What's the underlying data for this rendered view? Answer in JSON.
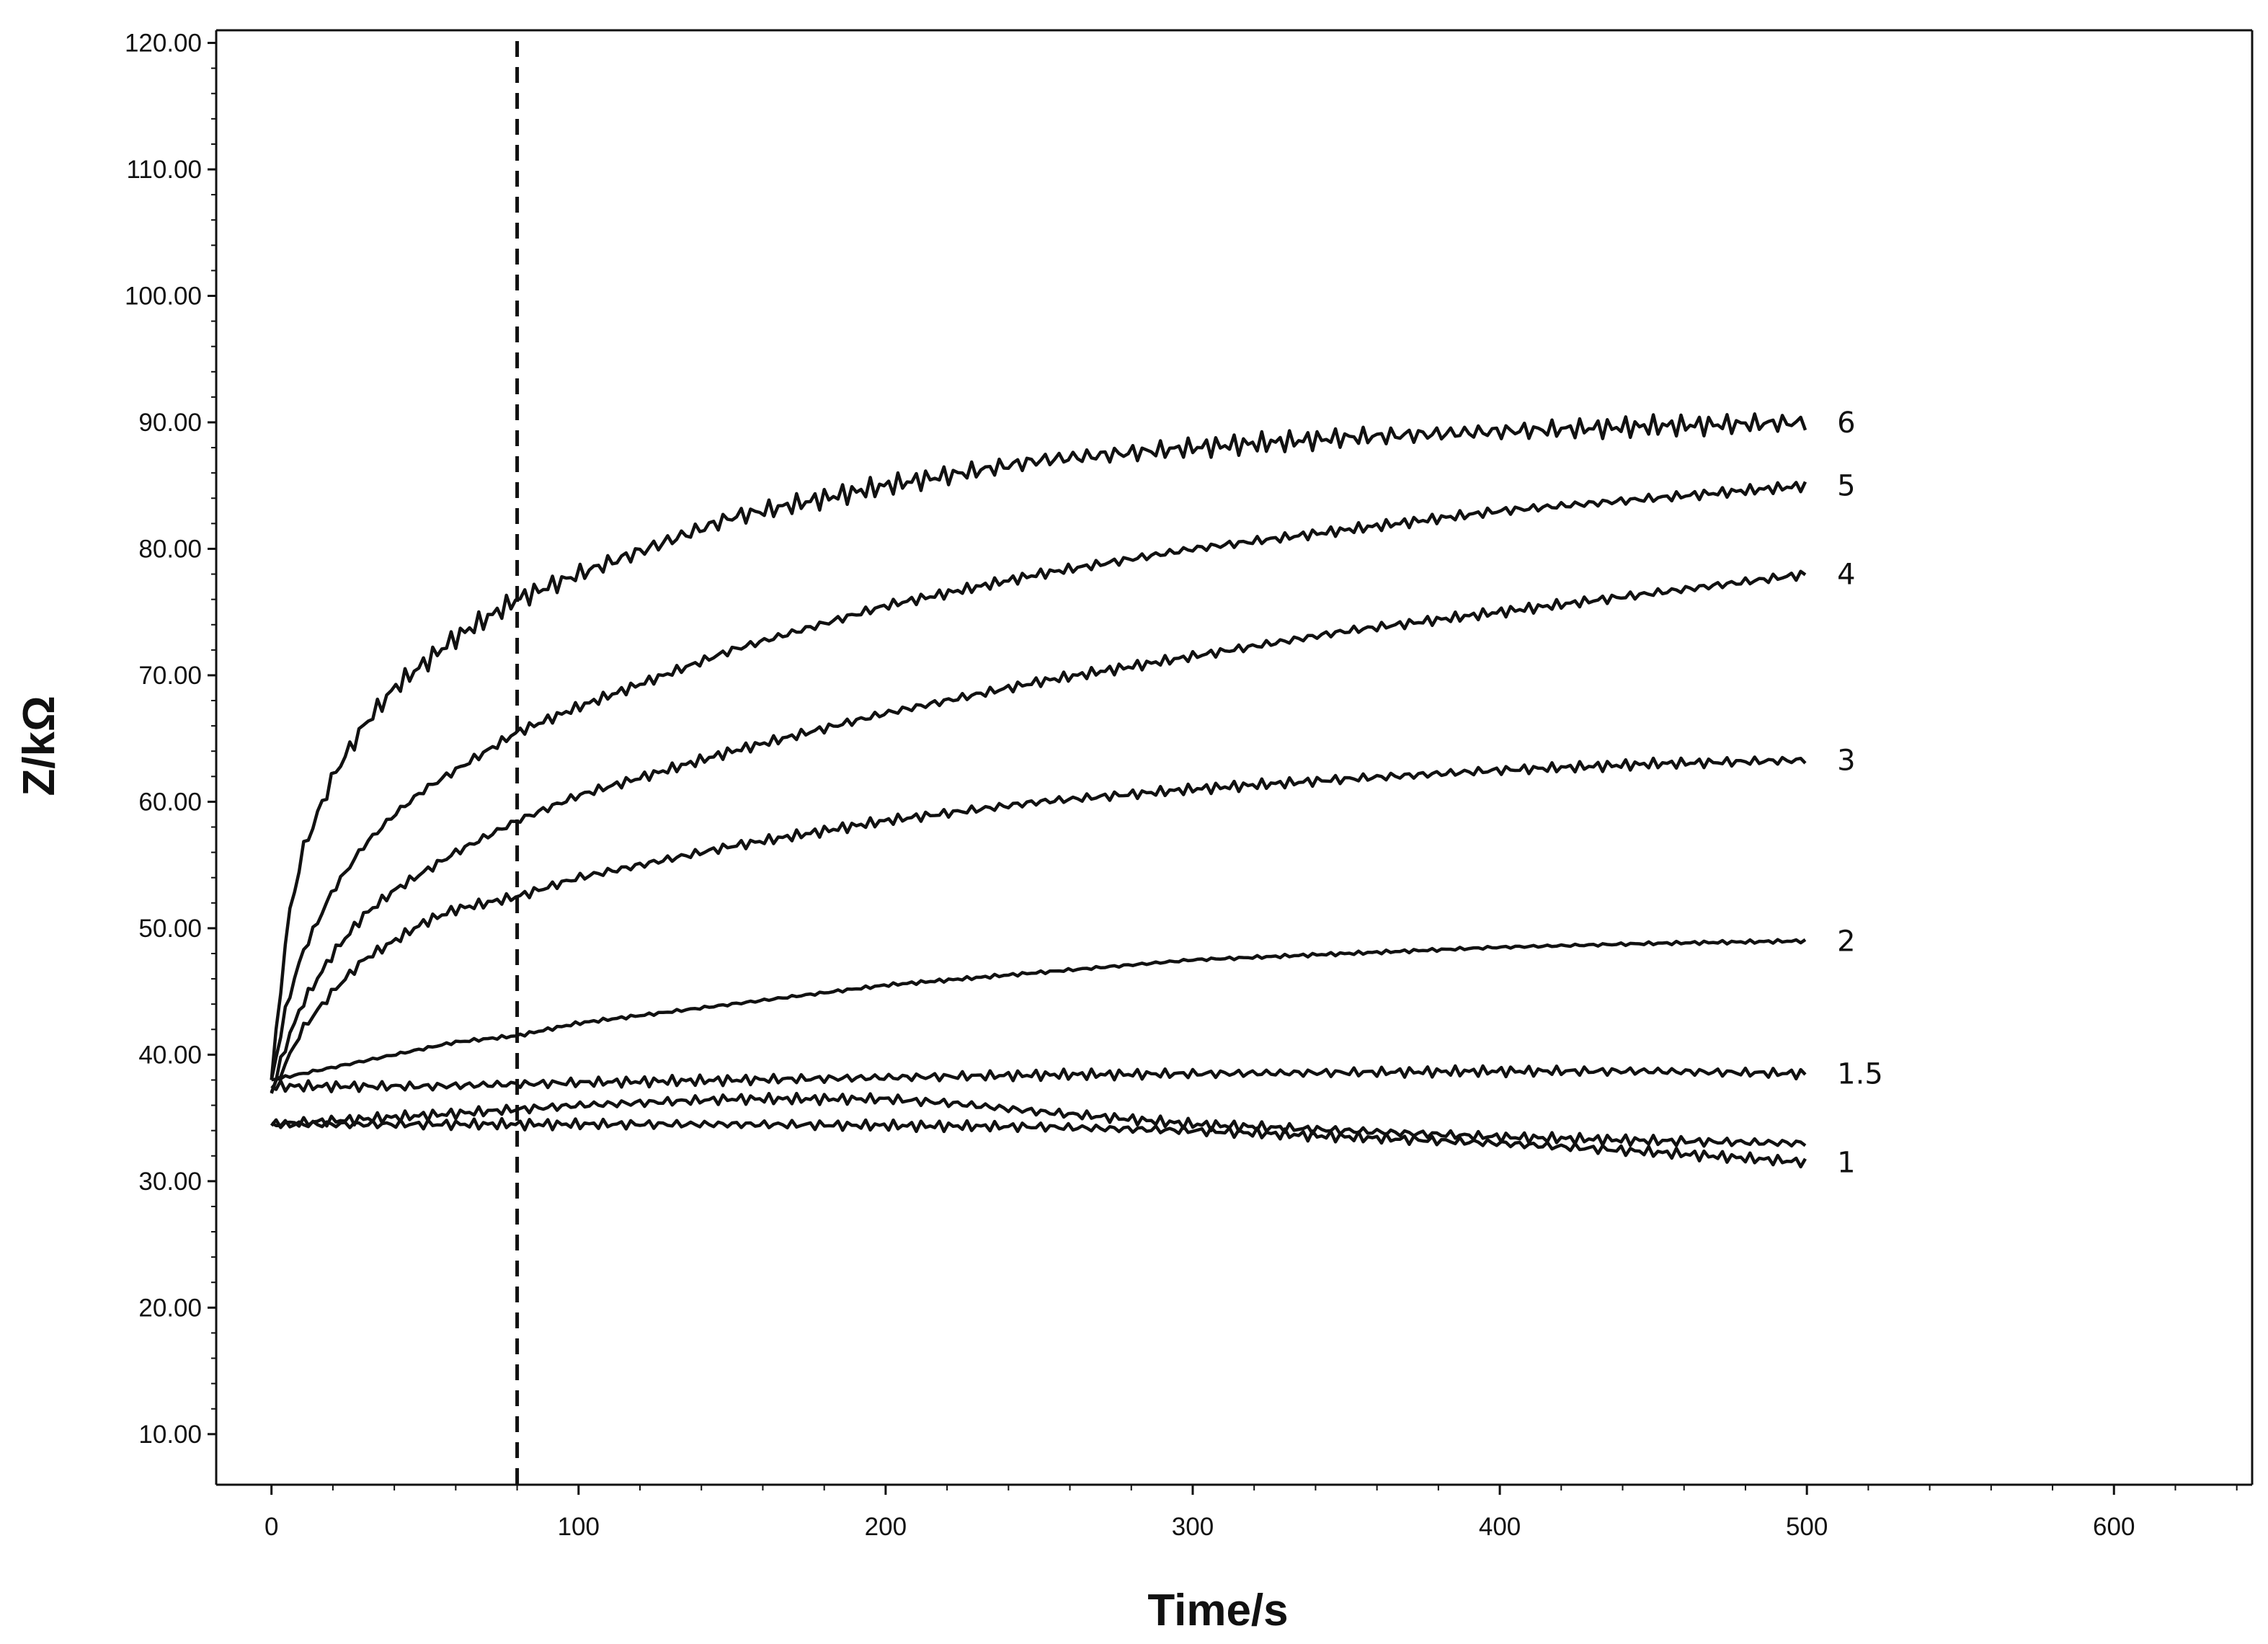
{
  "chart_data": {
    "type": "line",
    "title": "",
    "xlabel": "Time/s",
    "ylabel": "Z/kΩ",
    "xlim": [
      -18,
      645
    ],
    "ylim": [
      6,
      121
    ],
    "grid": false,
    "legend": "none",
    "line_color": "#111111",
    "x_ticks": [
      0,
      100,
      200,
      300,
      400,
      500,
      600
    ],
    "y_ticks": [
      10,
      20,
      30,
      40,
      50,
      60,
      70,
      80,
      90,
      100,
      110,
      120
    ],
    "y_tick_labels": [
      "10.00",
      "20.00",
      "30.00",
      "40.00",
      "50.00",
      "60.00",
      "70.00",
      "80.00",
      "90.00",
      "100.00",
      "110.00",
      "120.00"
    ],
    "vertical_marker_x": 80,
    "series": [
      {
        "label": "6",
        "x": [
          0,
          5,
          10,
          20,
          30,
          40,
          50,
          60,
          80,
          100,
          150,
          200,
          250,
          300,
          350,
          400,
          450,
          500
        ],
        "y": [
          38,
          50,
          56,
          62,
          66,
          69,
          71,
          73,
          76,
          78,
          82.5,
          85,
          87,
          88,
          88.8,
          89.3,
          89.7,
          90
        ]
      },
      {
        "label": "5",
        "x": [
          0,
          5,
          10,
          20,
          30,
          40,
          50,
          60,
          80,
          100,
          150,
          200,
          250,
          300,
          350,
          400,
          450,
          500
        ],
        "y": [
          38,
          44,
          48,
          53,
          56.5,
          59,
          61,
          62.5,
          65.5,
          67.5,
          72,
          75.5,
          78,
          80,
          81.5,
          83,
          84,
          85
        ]
      },
      {
        "label": "4",
        "x": [
          0,
          5,
          10,
          20,
          30,
          40,
          50,
          60,
          80,
          100,
          150,
          200,
          250,
          300,
          350,
          400,
          450,
          500
        ],
        "y": [
          37,
          41,
          44,
          48,
          51,
          53,
          54.5,
          56,
          58.5,
          60.5,
          64,
          67,
          69.5,
          71.5,
          73.5,
          75,
          76.5,
          78
        ]
      },
      {
        "label": "3",
        "x": [
          0,
          5,
          10,
          20,
          30,
          40,
          50,
          60,
          80,
          100,
          150,
          200,
          250,
          300,
          350,
          400,
          450,
          500
        ],
        "y": [
          37,
          39.5,
          42,
          45,
          47.5,
          49,
          50.5,
          51.5,
          52.5,
          54,
          56.5,
          58.5,
          60,
          61,
          61.8,
          62.5,
          63,
          63.3
        ]
      },
      {
        "label": "2",
        "x": [
          0,
          20,
          40,
          60,
          80,
          100,
          150,
          200,
          250,
          300,
          350,
          400,
          450,
          500
        ],
        "y": [
          38,
          39,
          40,
          41,
          41.5,
          42.5,
          44,
          45.5,
          46.5,
          47.5,
          48,
          48.5,
          48.8,
          49
        ]
      },
      {
        "label": "1.5",
        "x": [
          0,
          50,
          100,
          150,
          200,
          250,
          300,
          350,
          400,
          450,
          500
        ],
        "y": [
          37.5,
          37.5,
          37.8,
          38,
          38.2,
          38.4,
          38.5,
          38.6,
          38.7,
          38.7,
          38.5
        ]
      },
      {
        "label": "",
        "x": [
          0,
          50,
          100,
          150,
          200,
          220,
          250,
          300,
          350,
          400,
          450,
          500
        ],
        "y": [
          34.5,
          35.2,
          36,
          36.5,
          36.5,
          36.2,
          35.5,
          34.5,
          34,
          33.5,
          33.2,
          33
        ]
      },
      {
        "label": "1",
        "x": [
          0,
          50,
          100,
          150,
          200,
          250,
          300,
          350,
          400,
          450,
          500
        ],
        "y": [
          34.5,
          34.5,
          34.5,
          34.5,
          34.4,
          34.3,
          34,
          33.5,
          33,
          32.3,
          31.5
        ]
      }
    ]
  }
}
